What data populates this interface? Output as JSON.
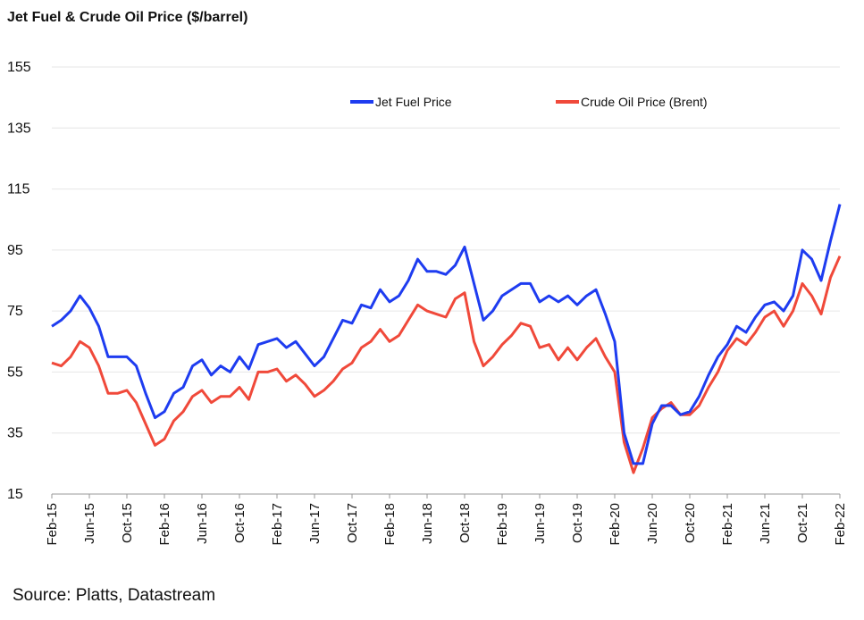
{
  "chart_data": {
    "type": "line",
    "title": "Jet Fuel & Crude Oil Price ($/barrel)",
    "source": "Source: Platts, Datastream",
    "categories": [
      "Feb-15",
      null,
      null,
      null,
      "Jun-15",
      null,
      null,
      null,
      "Oct-15",
      null,
      null,
      null,
      "Feb-16",
      null,
      null,
      null,
      "Jun-16",
      null,
      null,
      null,
      "Oct-16",
      null,
      null,
      null,
      "Feb-17",
      null,
      null,
      null,
      "Jun-17",
      null,
      null,
      null,
      "Oct-17",
      null,
      null,
      null,
      "Feb-18",
      null,
      null,
      null,
      "Jun-18",
      null,
      null,
      null,
      "Oct-18",
      null,
      null,
      null,
      "Feb-19",
      null,
      null,
      null,
      "Jun-19",
      null,
      null,
      null,
      "Oct-19",
      null,
      null,
      null,
      "Feb-20",
      null,
      null,
      null,
      "Jun-20",
      null,
      null,
      null,
      "Oct-20",
      null,
      null,
      null,
      "Feb-21",
      null,
      null,
      null,
      "Jun-21",
      null,
      null,
      null,
      "Oct-21",
      null,
      null,
      null,
      "Feb-22"
    ],
    "series": [
      {
        "name": "Jet Fuel Price",
        "color": "#1e3cf0",
        "values": [
          70,
          72,
          75,
          80,
          76,
          70,
          60,
          60,
          60,
          57,
          48,
          40,
          42,
          48,
          50,
          57,
          59,
          54,
          57,
          55,
          60,
          56,
          64,
          65,
          66,
          63,
          65,
          61,
          57,
          60,
          66,
          72,
          71,
          77,
          76,
          82,
          78,
          80,
          85,
          92,
          88,
          88,
          87,
          90,
          96,
          84,
          72,
          75,
          80,
          82,
          84,
          84,
          78,
          80,
          78,
          80,
          77,
          80,
          82,
          74,
          65,
          35,
          25,
          25,
          38,
          44,
          44,
          41,
          42,
          47,
          54,
          60,
          64,
          70,
          68,
          73,
          77,
          78,
          75,
          80,
          95,
          92,
          85,
          98,
          110
        ]
      },
      {
        "name": "Crude Oil Price (Brent)",
        "color": "#f0493a",
        "values": [
          58,
          57,
          60,
          65,
          63,
          57,
          48,
          48,
          49,
          45,
          38,
          31,
          33,
          39,
          42,
          47,
          49,
          45,
          47,
          47,
          50,
          46,
          55,
          55,
          56,
          52,
          54,
          51,
          47,
          49,
          52,
          56,
          58,
          63,
          65,
          69,
          65,
          67,
          72,
          77,
          75,
          74,
          73,
          79,
          81,
          65,
          57,
          60,
          64,
          67,
          71,
          70,
          63,
          64,
          59,
          63,
          59,
          63,
          66,
          60,
          55,
          32,
          22,
          30,
          40,
          43,
          45,
          41,
          41,
          44,
          50,
          55,
          62,
          66,
          64,
          68,
          73,
          75,
          70,
          75,
          84,
          80,
          74,
          86,
          93
        ]
      }
    ],
    "ylim": [
      15,
      155
    ],
    "yticks": [
      15,
      35,
      55,
      75,
      95,
      115,
      135,
      155
    ],
    "grid": true
  }
}
